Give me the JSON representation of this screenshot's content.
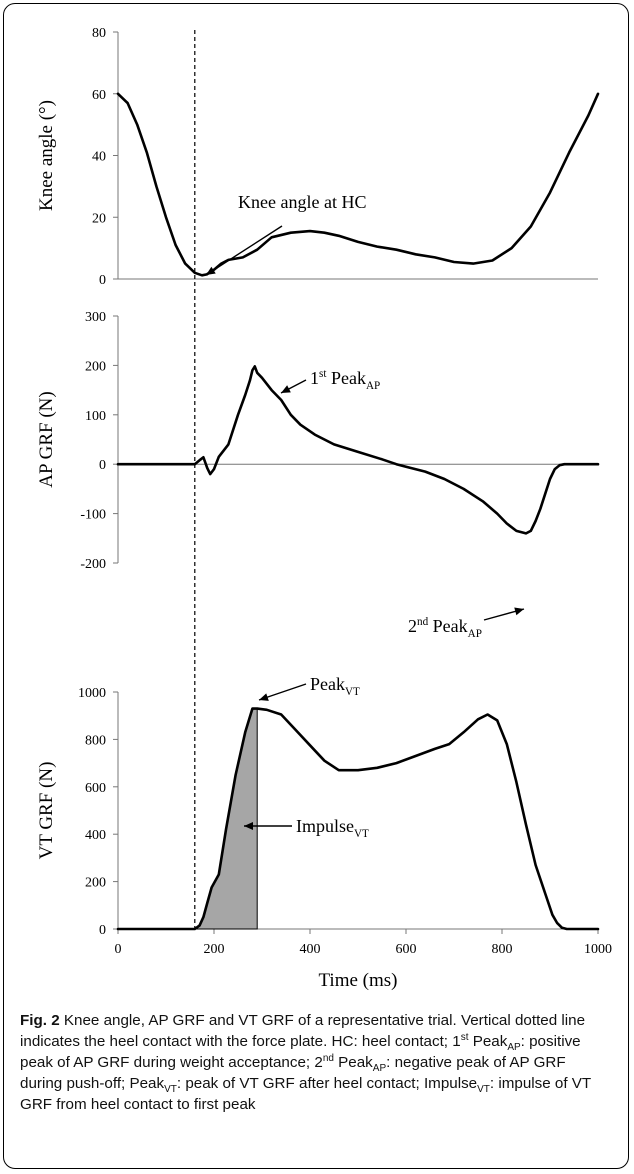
{
  "chart_data": [
    {
      "type": "line",
      "ylabel": "Knee angle (°)",
      "xlim": [
        0,
        1000
      ],
      "ylim": [
        0,
        80
      ],
      "yticks": [
        0,
        20,
        40,
        60,
        80
      ],
      "x": [
        0,
        20,
        40,
        60,
        80,
        100,
        120,
        140,
        160,
        175,
        185,
        200,
        215,
        230,
        260,
        290,
        320,
        360,
        400,
        430,
        460,
        500,
        540,
        580,
        620,
        660,
        700,
        740,
        780,
        820,
        860,
        900,
        940,
        980,
        1000
      ],
      "series": [
        {
          "values": [
            60,
            57,
            50,
            41,
            30,
            20,
            11,
            5,
            2,
            1.2,
            1.5,
            3,
            5,
            6.2,
            7,
            9.5,
            13.5,
            15,
            15.5,
            15,
            14,
            12,
            10.5,
            9.5,
            8,
            7,
            5.5,
            5,
            6,
            10,
            17,
            28,
            41,
            53,
            60
          ]
        }
      ],
      "annotations": [
        {
          "text": "Knee angle at HC",
          "point": [
            175,
            1.2
          ]
        }
      ]
    },
    {
      "type": "line",
      "ylabel": "AP GRF (N)",
      "xlim": [
        0,
        1000
      ],
      "ylim": [
        -200,
        300
      ],
      "yticks": [
        -200,
        -100,
        0,
        100,
        200,
        300
      ],
      "x": [
        0,
        160,
        170,
        178,
        186,
        192,
        200,
        210,
        230,
        250,
        265,
        275,
        280,
        285,
        290,
        300,
        320,
        340,
        360,
        380,
        410,
        450,
        500,
        550,
        580,
        600,
        640,
        680,
        720,
        760,
        790,
        810,
        830,
        850,
        860,
        870,
        880,
        890,
        900,
        910,
        920,
        930,
        1000
      ],
      "series": [
        {
          "values": [
            0,
            0,
            8,
            14,
            -8,
            -20,
            -10,
            15,
            40,
            100,
            140,
            170,
            190,
            198,
            185,
            175,
            150,
            130,
            100,
            80,
            60,
            40,
            25,
            10,
            0,
            -5,
            -15,
            -30,
            -50,
            -75,
            -100,
            -120,
            -135,
            -140,
            -135,
            -115,
            -90,
            -60,
            -30,
            -10,
            -2,
            0,
            0
          ]
        }
      ],
      "annotations": [
        {
          "text": "1st PeakAP",
          "point": [
            285,
            198
          ]
        },
        {
          "text": "2nd PeakAP",
          "point": [
            850,
            -140
          ]
        }
      ]
    },
    {
      "type": "area",
      "ylabel": "VT GRF (N)",
      "xlabel": "Time (ms)",
      "xlim": [
        0,
        1000
      ],
      "ylim": [
        0,
        1000
      ],
      "xticks": [
        0,
        200,
        400,
        600,
        800,
        1000
      ],
      "yticks": [
        0,
        200,
        400,
        600,
        800,
        1000
      ],
      "x": [
        0,
        160,
        170,
        178,
        186,
        195,
        210,
        225,
        245,
        265,
        280,
        285,
        290,
        310,
        340,
        370,
        400,
        430,
        460,
        500,
        540,
        580,
        620,
        660,
        690,
        720,
        750,
        770,
        790,
        810,
        830,
        850,
        870,
        890,
        905,
        915,
        925,
        935,
        1000
      ],
      "series": [
        {
          "values": [
            0,
            0,
            15,
            50,
            110,
            175,
            230,
            420,
            650,
            830,
            930,
            930,
            930,
            925,
            905,
            840,
            775,
            710,
            670,
            670,
            680,
            700,
            730,
            760,
            780,
            830,
            885,
            905,
            880,
            780,
            620,
            440,
            270,
            150,
            60,
            25,
            5,
            0,
            0
          ]
        }
      ],
      "shaded_region": {
        "x_from": 160,
        "x_to": 290
      },
      "annotations": [
        {
          "text": "PeakVT",
          "point": [
            290,
            930
          ]
        },
        {
          "text": "ImpulseVT",
          "point": [
            235,
            500
          ]
        }
      ]
    }
  ],
  "marker_line_x": 160,
  "caption": {
    "fig_label": "Fig. 2",
    "text_1": " Knee angle, AP GRF and VT GRF of a representative trial. Vertical dotted line indicates the heel contact with the force plate. HC: heel contact; 1",
    "sup_1": "st",
    "text_2": " Peak",
    "sub_1": "AP",
    "text_3": ": positive peak of AP GRF during weight acceptance; 2",
    "sup_2": "nd",
    "text_4": " Peak",
    "sub_2": "AP",
    "text_5": ": negative peak of AP GRF during push-off; Peak",
    "sub_3": "VT",
    "text_6": ": peak of VT GRF after heel contact; Impulse",
    "sub_4": "VT",
    "text_7": ": impulse of VT GRF from heel contact to first peak"
  }
}
